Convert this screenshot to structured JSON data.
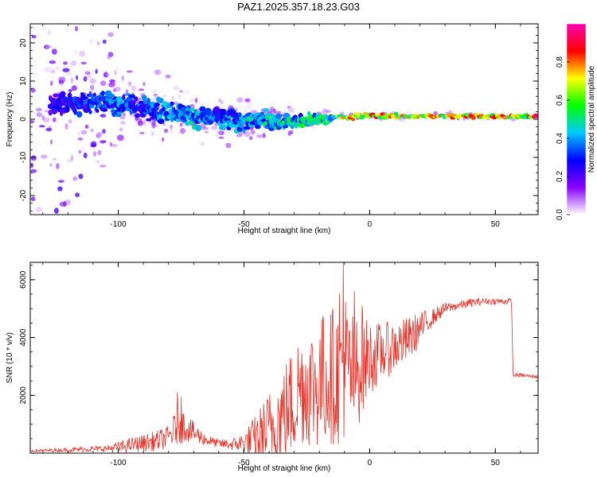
{
  "title": "PAZ1.2025.357.18.23.G03",
  "chart_data": [
    {
      "type": "heatmap",
      "xlabel": "Height of straight line (km)",
      "ylabel": "Frequency (Hz)",
      "xlim": [
        -135,
        67
      ],
      "ylim": [
        -25,
        25
      ],
      "x_ticks": [
        -100,
        -50,
        0,
        50
      ],
      "y_ticks": [
        -20,
        -10,
        0,
        10,
        20
      ],
      "colorbar": {
        "label": "Normalized spectral amplitude",
        "range": [
          0,
          1
        ],
        "ticks": [
          "0.0",
          "0.2",
          "0.4",
          "0.6",
          "0.8"
        ],
        "colors": [
          "#ffffff",
          "#8a00ff",
          "#0000ff",
          "#00c8ff",
          "#00ff00",
          "#ffff00",
          "#ff0000",
          "#ff00b4"
        ]
      },
      "ridge": {
        "x": [
          -130,
          -120,
          -110,
          -100,
          -90,
          -80,
          -70,
          -60,
          -50,
          -40,
          -30,
          -20,
          -10,
          0,
          10,
          20,
          30,
          40,
          50,
          60,
          67
        ],
        "frequency_hz": [
          4,
          4.5,
          4.5,
          4,
          3,
          2,
          1,
          0,
          -0.5,
          -0.5,
          -0.5,
          0,
          0.5,
          1,
          0.8,
          0.8,
          0.8,
          0.8,
          0.8,
          0.8,
          0.8
        ],
        "spread_hz": [
          40,
          40,
          35,
          12,
          8,
          7,
          6,
          6,
          5,
          4,
          3,
          2,
          1.5,
          1,
          1,
          1,
          1,
          1,
          1,
          1,
          1
        ],
        "peak_amplitude": [
          0.25,
          0.3,
          0.35,
          0.4,
          0.35,
          0.45,
          0.45,
          0.4,
          0.45,
          0.5,
          0.5,
          0.55,
          0.75,
          0.85,
          0.8,
          0.8,
          0.82,
          0.85,
          0.85,
          0.85,
          0.85
        ]
      }
    },
    {
      "type": "line",
      "xlabel": "Height of straight line (km)",
      "ylabel": "SNR (10 * v/v)",
      "xlim": [
        -135,
        67
      ],
      "ylim": [
        0,
        6600
      ],
      "x_ticks": [
        -100,
        -50,
        0,
        50
      ],
      "y_ticks": [
        2000,
        4000,
        6000
      ],
      "series": [
        {
          "color": "#e8332a",
          "x": [
            -135,
            -125,
            -115,
            -105,
            -100,
            -95,
            -90,
            -85,
            -80,
            -76,
            -73,
            -70,
            -65,
            -60,
            -55,
            -50,
            -45,
            -40,
            -35,
            -30,
            -28,
            -25,
            -20,
            -18,
            -15,
            -13,
            -11,
            -10,
            -8,
            -5,
            -3,
            0,
            5,
            10,
            15,
            20,
            25,
            30,
            35,
            40,
            45,
            50,
            55,
            56.5,
            57,
            60,
            65,
            67
          ],
          "mean": [
            80,
            100,
            130,
            160,
            200,
            280,
            350,
            420,
            550,
            1000,
            900,
            700,
            450,
            330,
            300,
            350,
            500,
            800,
            1300,
            1800,
            2300,
            2300,
            2400,
            2600,
            2700,
            2700,
            3000,
            3100,
            2700,
            2800,
            3100,
            3300,
            3500,
            3700,
            3900,
            4300,
            4700,
            5000,
            5100,
            5200,
            5250,
            5250,
            5250,
            5250,
            2700,
            2700,
            2650,
            2650
          ],
          "noise": [
            40,
            60,
            90,
            110,
            200,
            250,
            300,
            350,
            400,
            700,
            500,
            380,
            200,
            150,
            200,
            400,
            900,
            1400,
            1700,
            2000,
            2000,
            2100,
            2300,
            2400,
            2400,
            2500,
            2600,
            2700,
            2400,
            2000,
            1800,
            1300,
            1000,
            900,
            800,
            600,
            300,
            200,
            150,
            150,
            120,
            110,
            110,
            110,
            80,
            70,
            60,
            60
          ],
          "spikes": [
            [
              -76.5,
              2100
            ],
            [
              -75,
              1950
            ],
            [
              -18.4,
              4650
            ],
            [
              -10.5,
              6600
            ],
            [
              -12,
              5500
            ],
            [
              -6,
              5600
            ],
            [
              -3,
              5100
            ]
          ]
        }
      ]
    }
  ]
}
